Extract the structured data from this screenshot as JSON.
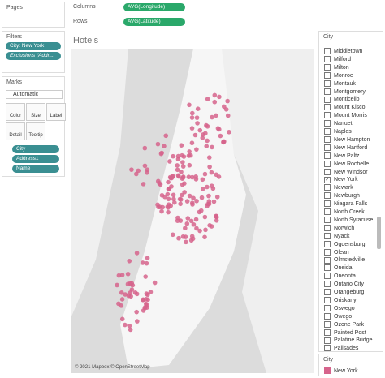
{
  "left": {
    "pages": "Pages",
    "filters": {
      "title": "Filters",
      "items": [
        "City: New York",
        "Exclusions (Addr..."
      ]
    },
    "marks": {
      "title": "Marks",
      "type": "Automatic",
      "buttons": [
        "Color",
        "Size",
        "Label",
        "Detail",
        "Tooltip"
      ],
      "fields": [
        "City",
        "Address1",
        "Name"
      ]
    }
  },
  "shelves": {
    "columns": {
      "label": "Columns",
      "pill": "AVG(Longitude)"
    },
    "rows": {
      "label": "Rows",
      "pill": "AVG(Latitude)"
    }
  },
  "view": {
    "title": "Hotels",
    "credit": "© 2021 Mapbox © OpenStreetMap"
  },
  "filter_card": {
    "title": "City",
    "items": [
      {
        "label": "Middletown",
        "checked": false
      },
      {
        "label": "Milford",
        "checked": false
      },
      {
        "label": "Milton",
        "checked": false
      },
      {
        "label": "Monroe",
        "checked": false
      },
      {
        "label": "Montauk",
        "checked": false
      },
      {
        "label": "Montgomery",
        "checked": false
      },
      {
        "label": "Monticello",
        "checked": false
      },
      {
        "label": "Mount Kisco",
        "checked": false
      },
      {
        "label": "Mount Morris",
        "checked": false
      },
      {
        "label": "Nanuet",
        "checked": false
      },
      {
        "label": "Naples",
        "checked": false
      },
      {
        "label": "New Hampton",
        "checked": false
      },
      {
        "label": "New Hartford",
        "checked": false
      },
      {
        "label": "New Paltz",
        "checked": false
      },
      {
        "label": "New Rochelle",
        "checked": false
      },
      {
        "label": "New Windsor",
        "checked": false
      },
      {
        "label": "New York",
        "checked": true
      },
      {
        "label": "Newark",
        "checked": false
      },
      {
        "label": "Newburgh",
        "checked": false
      },
      {
        "label": "Niagara Falls",
        "checked": false
      },
      {
        "label": "North Creek",
        "checked": false
      },
      {
        "label": "North Syracuse",
        "checked": false
      },
      {
        "label": "Norwich",
        "checked": false
      },
      {
        "label": "Nyack",
        "checked": false
      },
      {
        "label": "Ogdensburg",
        "checked": false
      },
      {
        "label": "Olean",
        "checked": false
      },
      {
        "label": "Olmstedville",
        "checked": false
      },
      {
        "label": "Oneida",
        "checked": false
      },
      {
        "label": "Oneonta",
        "checked": false
      },
      {
        "label": "Ontario City",
        "checked": false
      },
      {
        "label": "Orangeburg",
        "checked": false
      },
      {
        "label": "Oriskany",
        "checked": false
      },
      {
        "label": "Oswego",
        "checked": false
      },
      {
        "label": "Owego",
        "checked": false
      },
      {
        "label": "Ozone Park",
        "checked": false
      },
      {
        "label": "Painted Post",
        "checked": false
      },
      {
        "label": "Palatine Bridge",
        "checked": false
      },
      {
        "label": "Palisades",
        "checked": false
      }
    ]
  },
  "legend": {
    "title": "City",
    "items": [
      {
        "label": "New York",
        "color": "#d6648c"
      }
    ]
  }
}
